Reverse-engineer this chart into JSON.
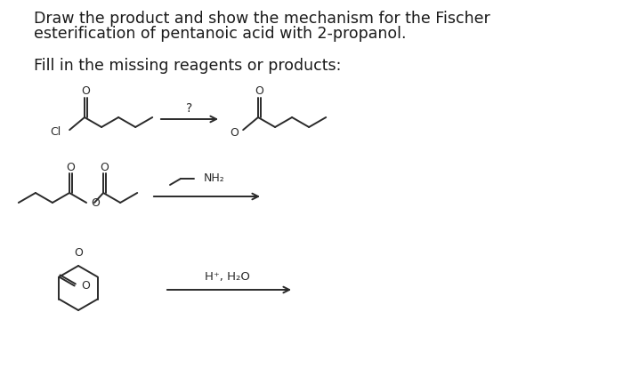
{
  "bg_color": "#ffffff",
  "text_color": "#1a1a1a",
  "line_color": "#2a2a2a",
  "title_line1": "Draw the product and show the mechanism for the Fischer",
  "title_line2": "esterification of pentanoic acid with 2-propanol.",
  "subtitle": "Fill in the missing reagents or products:",
  "title_fontsize": 12.5,
  "subtitle_fontsize": 12.5,
  "figsize": [
    7.0,
    4.32
  ],
  "dpi": 100
}
